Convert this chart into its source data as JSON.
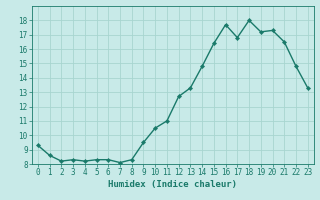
{
  "x": [
    0,
    1,
    2,
    3,
    4,
    5,
    6,
    7,
    8,
    9,
    10,
    11,
    12,
    13,
    14,
    15,
    16,
    17,
    18,
    19,
    20,
    21,
    22,
    23
  ],
  "y": [
    9.3,
    8.6,
    8.2,
    8.3,
    8.2,
    8.3,
    8.3,
    8.1,
    8.3,
    9.5,
    10.5,
    11.0,
    12.7,
    13.3,
    14.8,
    16.4,
    17.7,
    16.8,
    18.0,
    17.2,
    17.3,
    16.5,
    14.8,
    13.3
  ],
  "line_color": "#1a7a6a",
  "marker_color": "#1a7a6a",
  "bg_color": "#c8eae8",
  "grid_color": "#a8d5d0",
  "axis_color": "#1a7a6a",
  "xlabel": "Humidex (Indice chaleur)",
  "ylim": [
    8,
    19
  ],
  "xlim": [
    -0.5,
    23.5
  ],
  "yticks": [
    8,
    9,
    10,
    11,
    12,
    13,
    14,
    15,
    16,
    17,
    18
  ],
  "xticks": [
    0,
    1,
    2,
    3,
    4,
    5,
    6,
    7,
    8,
    9,
    10,
    11,
    12,
    13,
    14,
    15,
    16,
    17,
    18,
    19,
    20,
    21,
    22,
    23
  ],
  "marker_size": 2.2,
  "line_width": 1.0,
  "tick_font_size": 5.5,
  "label_font_size": 6.5
}
